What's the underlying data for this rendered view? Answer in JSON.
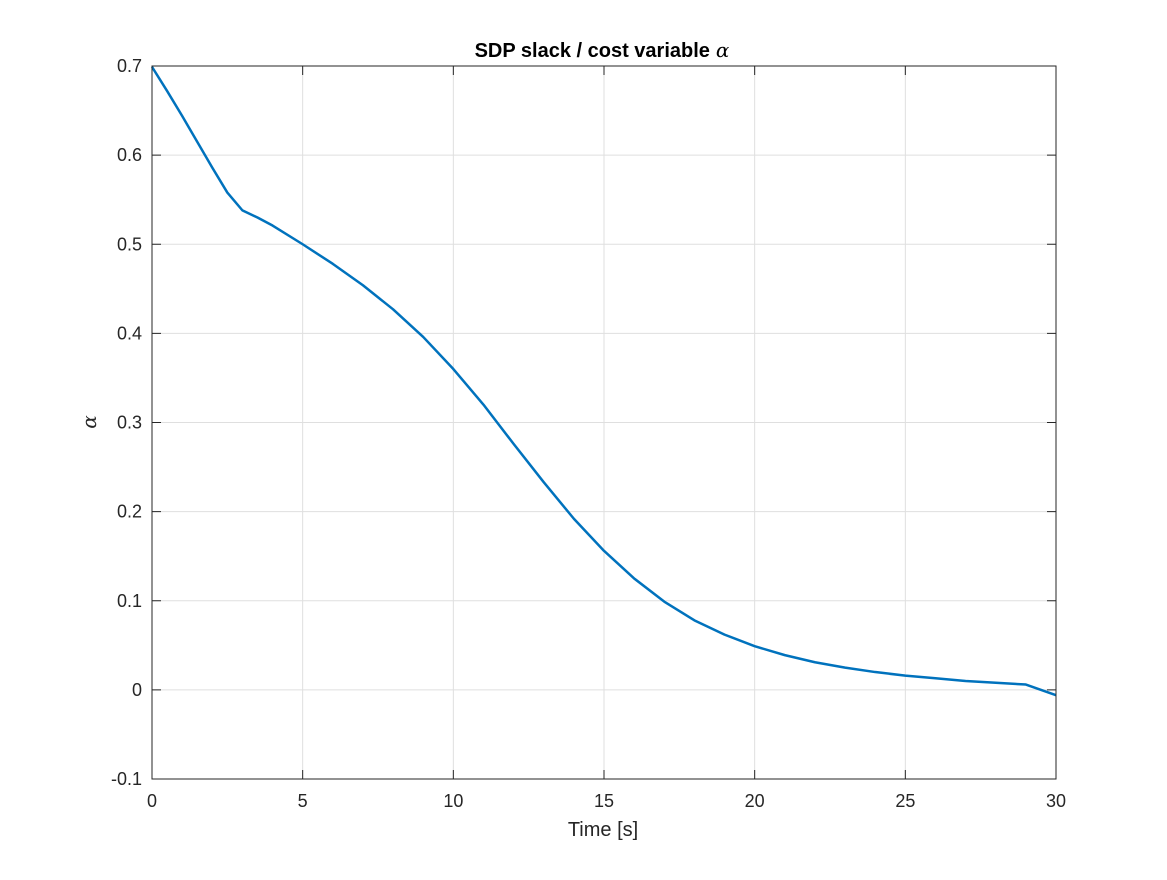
{
  "chart_data": {
    "type": "line",
    "title": "SDP slack / cost variable",
    "title_symbol": "α",
    "xlabel": "Time [s]",
    "ylabel": "α",
    "xlim": [
      0,
      30
    ],
    "ylim": [
      -0.1,
      0.7
    ],
    "x_ticks": [
      0,
      5,
      10,
      15,
      20,
      25,
      30
    ],
    "x_tick_labels": [
      "0",
      "5",
      "10",
      "15",
      "20",
      "25",
      "30"
    ],
    "y_ticks": [
      -0.1,
      0,
      0.1,
      0.2,
      0.3,
      0.4,
      0.5,
      0.6,
      0.7
    ],
    "y_tick_labels": [
      "-0.1",
      "0",
      "0.1",
      "0.2",
      "0.3",
      "0.4",
      "0.5",
      "0.6",
      "0.7"
    ],
    "grid": true,
    "box": true,
    "colors": {
      "line": "#0072bd",
      "grid": "#dfdfdf",
      "axes": "#262626"
    },
    "series": [
      {
        "x": [
          0,
          0.5,
          1,
          1.5,
          2,
          2.5,
          3,
          3.5,
          4,
          5,
          6,
          7,
          8,
          9,
          10,
          11,
          12,
          13,
          14,
          15,
          16,
          17,
          18,
          19,
          20,
          21,
          22,
          23,
          24,
          25,
          26,
          27,
          28,
          29,
          30
        ],
        "y": [
          0.699,
          0.672,
          0.644,
          0.615,
          0.586,
          0.558,
          0.538,
          0.53,
          0.521,
          0.5,
          0.478,
          0.454,
          0.427,
          0.396,
          0.36,
          0.32,
          0.276,
          0.233,
          0.192,
          0.156,
          0.125,
          0.099,
          0.078,
          0.062,
          0.049,
          0.039,
          0.031,
          0.025,
          0.02,
          0.016,
          0.013,
          0.01,
          0.008,
          0.006,
          -0.006
        ]
      }
    ]
  }
}
